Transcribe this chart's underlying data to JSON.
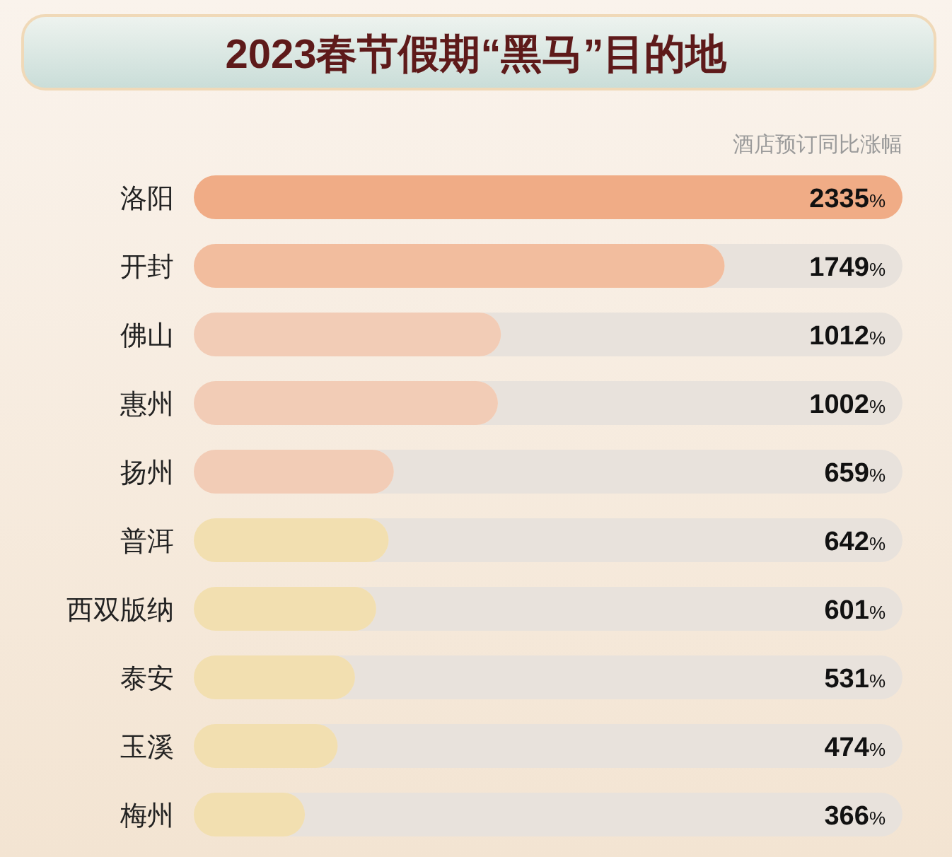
{
  "chart_data": {
    "type": "bar",
    "orientation": "horizontal",
    "title": "2023春节假期“黑马”目的地",
    "subtitle": "酒店预订同比涨幅",
    "categories": [
      "洛阳",
      "开封",
      "佛山",
      "惠州",
      "扬州",
      "普洱",
      "西双版纳",
      "泰安",
      "玉溪",
      "梅州"
    ],
    "values": [
      2335,
      1749,
      1012,
      1002,
      659,
      642,
      601,
      531,
      474,
      366
    ],
    "value_labels": [
      "2335%",
      "1749%",
      "1012%",
      "1002%",
      "659%",
      "642%",
      "601%",
      "531%",
      "474%",
      "366%"
    ],
    "colors": [
      "#f0ac86",
      "#f2bd9e",
      "#f2ccb6",
      "#f2ccb6",
      "#f2ccb6",
      "#f2dfb0",
      "#f2dfb0",
      "#f2dfb0",
      "#f2dfb0",
      "#f2dfb0"
    ]
  }
}
